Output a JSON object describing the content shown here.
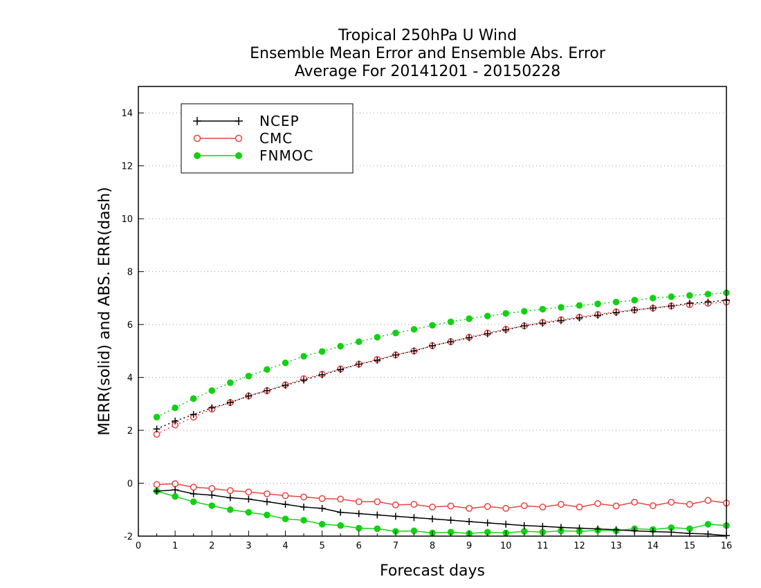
{
  "chart_data": {
    "type": "line",
    "title": [
      "Tropical 250hPa U Wind",
      "Ensemble Mean Error and Ensemble Abs. Error",
      "Average For 20141201 - 20150228"
    ],
    "xlabel": "Forecast days",
    "ylabel": "MERR(solid) and ABS. ERR(dash)",
    "xlim": [
      0,
      16
    ],
    "ylim": [
      -2,
      15
    ],
    "xticks": [
      0,
      1,
      2,
      3,
      4,
      5,
      6,
      7,
      8,
      9,
      10,
      11,
      12,
      13,
      14,
      15,
      16
    ],
    "yticks": [
      -2,
      0,
      2,
      4,
      6,
      8,
      10,
      12,
      14
    ],
    "grid": "horizontal dotted",
    "legend_position": "top-left",
    "x": [
      0.5,
      1,
      1.5,
      2,
      2.5,
      3,
      3.5,
      4,
      4.5,
      5,
      5.5,
      6,
      6.5,
      7,
      7.5,
      8,
      8.5,
      9,
      9.5,
      10,
      10.5,
      11,
      11.5,
      12,
      12.5,
      13,
      13.5,
      14,
      14.5,
      15,
      15.5,
      16
    ],
    "series": [
      {
        "name": "NCEP",
        "color": "#000000",
        "marker": "plus",
        "merr": [
          -0.3,
          -0.25,
          -0.4,
          -0.45,
          -0.55,
          -0.6,
          -0.7,
          -0.8,
          -0.9,
          -0.95,
          -1.1,
          -1.15,
          -1.2,
          -1.25,
          -1.3,
          -1.35,
          -1.4,
          -1.45,
          -1.5,
          -1.55,
          -1.6,
          -1.63,
          -1.67,
          -1.7,
          -1.73,
          -1.76,
          -1.8,
          -1.83,
          -1.85,
          -1.9,
          -1.92,
          -1.98
        ],
        "abs_err": [
          2.05,
          2.35,
          2.6,
          2.85,
          3.05,
          3.3,
          3.5,
          3.7,
          3.9,
          4.1,
          4.3,
          4.5,
          4.65,
          4.85,
          5.0,
          5.2,
          5.35,
          5.5,
          5.65,
          5.8,
          5.95,
          6.05,
          6.15,
          6.25,
          6.35,
          6.45,
          6.55,
          6.62,
          6.7,
          6.8,
          6.85,
          6.92
        ]
      },
      {
        "name": "CMC",
        "color": "#e8423f",
        "marker": "open-circle",
        "merr": [
          -0.05,
          -0.02,
          -0.15,
          -0.2,
          -0.28,
          -0.33,
          -0.4,
          -0.47,
          -0.52,
          -0.58,
          -0.6,
          -0.7,
          -0.7,
          -0.82,
          -0.8,
          -0.9,
          -0.86,
          -0.95,
          -0.88,
          -0.95,
          -0.85,
          -0.9,
          -0.8,
          -0.9,
          -0.77,
          -0.86,
          -0.72,
          -0.85,
          -0.72,
          -0.8,
          -0.65,
          -0.75
        ],
        "abs_err": [
          1.85,
          2.2,
          2.5,
          2.8,
          3.05,
          3.3,
          3.5,
          3.72,
          3.95,
          4.12,
          4.32,
          4.5,
          4.68,
          4.85,
          5.0,
          5.2,
          5.35,
          5.52,
          5.68,
          5.82,
          5.95,
          6.08,
          6.18,
          6.28,
          6.38,
          6.48,
          6.55,
          6.62,
          6.7,
          6.75,
          6.8,
          6.85
        ]
      },
      {
        "name": "FNMOC",
        "color": "#13d013",
        "marker": "filled-circle",
        "merr": [
          -0.3,
          -0.5,
          -0.7,
          -0.85,
          -1.0,
          -1.1,
          -1.2,
          -1.35,
          -1.4,
          -1.55,
          -1.6,
          -1.7,
          -1.72,
          -1.82,
          -1.8,
          -1.88,
          -1.85,
          -1.9,
          -1.85,
          -1.88,
          -1.82,
          -1.85,
          -1.8,
          -1.82,
          -1.78,
          -1.8,
          -1.72,
          -1.75,
          -1.68,
          -1.72,
          -1.55,
          -1.6
        ],
        "abs_err": [
          2.5,
          2.85,
          3.2,
          3.5,
          3.8,
          4.05,
          4.3,
          4.55,
          4.8,
          4.98,
          5.18,
          5.35,
          5.52,
          5.68,
          5.82,
          5.97,
          6.1,
          6.22,
          6.32,
          6.42,
          6.5,
          6.58,
          6.65,
          6.72,
          6.78,
          6.85,
          6.92,
          7.0,
          7.05,
          7.1,
          7.15,
          7.2
        ]
      }
    ]
  }
}
